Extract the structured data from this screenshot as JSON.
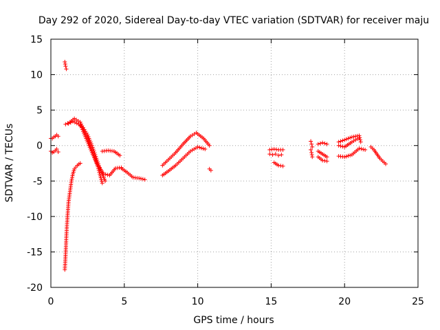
{
  "chart_data": {
    "type": "scatter",
    "title": "Day 292 of 2020, Sidereal Day-to-day VTEC variation (SDTVAR) for receiver maju",
    "xlabel": "GPS time / hours",
    "ylabel": "SDTVAR / TECUs",
    "xlim": [
      0,
      25
    ],
    "ylim": [
      -20,
      15
    ],
    "xticks": [
      0,
      5,
      10,
      15,
      20,
      25
    ],
    "yticks": [
      -20,
      -15,
      -10,
      -5,
      0,
      5,
      10,
      15
    ],
    "grid": true,
    "marker": "plus",
    "color": "#ff0000",
    "segments": [
      {
        "name": "seg-a",
        "x": [
          0.0,
          0.1,
          0.2,
          0.3,
          0.4,
          0.5
        ],
        "y": [
          1.0,
          1.0,
          1.2,
          1.3,
          1.5,
          1.3
        ]
      },
      {
        "name": "seg-b",
        "x": [
          0.0,
          0.1,
          0.2,
          0.3,
          0.4,
          0.5
        ],
        "y": [
          -0.8,
          -1.0,
          -0.9,
          -0.7,
          -0.5,
          -0.9
        ]
      },
      {
        "name": "seg-c",
        "x": [
          0.95,
          1.0,
          1.05
        ],
        "y": [
          11.8,
          11.2,
          10.8
        ]
      },
      {
        "name": "seg-d",
        "x": [
          0.95,
          1.0,
          1.05,
          1.1,
          1.15,
          1.2,
          1.3,
          1.4,
          1.5,
          1.6,
          1.8,
          2.0
        ],
        "y": [
          -17.5,
          -15.5,
          -13.0,
          -11.0,
          -9.5,
          -8.0,
          -6.5,
          -5.0,
          -4.0,
          -3.3,
          -2.8,
          -2.5
        ]
      },
      {
        "name": "seg-e",
        "x": [
          1.0,
          1.3,
          1.6,
          2.0,
          2.3,
          2.6,
          2.9,
          3.2,
          3.5
        ],
        "y": [
          3.0,
          3.3,
          3.8,
          3.3,
          2.0,
          0.5,
          -1.2,
          -3.0,
          -5.3
        ]
      },
      {
        "name": "seg-f",
        "x": [
          1.2,
          1.5,
          1.9,
          2.2,
          2.5,
          2.8,
          3.1,
          3.4,
          3.7
        ],
        "y": [
          3.1,
          3.4,
          3.0,
          2.5,
          1.5,
          0.0,
          -1.8,
          -3.6,
          -5.0
        ]
      },
      {
        "name": "seg-g",
        "x": [
          2.0,
          2.4,
          2.8,
          3.2,
          3.6,
          4.0,
          4.4,
          4.8
        ],
        "y": [
          3.0,
          1.0,
          -1.0,
          -2.8,
          -4.0,
          -4.2,
          -3.2,
          -3.1
        ]
      },
      {
        "name": "seg-h",
        "x": [
          3.5,
          3.9,
          4.3,
          4.7
        ],
        "y": [
          -0.8,
          -0.7,
          -0.8,
          -1.4
        ]
      },
      {
        "name": "seg-i",
        "x": [
          4.8,
          5.2,
          5.6,
          6.0,
          6.4
        ],
        "y": [
          -3.2,
          -3.8,
          -4.5,
          -4.6,
          -4.8
        ]
      },
      {
        "name": "seg-j",
        "x": [
          7.6,
          8.0,
          8.5,
          9.0,
          9.5,
          9.9,
          10.4,
          10.8
        ],
        "y": [
          -2.8,
          -2.0,
          -1.0,
          0.2,
          1.3,
          1.8,
          1.0,
          0.0
        ]
      },
      {
        "name": "seg-k",
        "x": [
          7.6,
          8.0,
          8.5,
          9.0,
          9.5,
          10.0,
          10.5
        ],
        "y": [
          -4.2,
          -3.6,
          -2.8,
          -1.8,
          -0.8,
          -0.2,
          -0.5
        ]
      },
      {
        "name": "seg-l",
        "x": [
          10.8,
          10.9
        ],
        "y": [
          -3.3,
          -3.5
        ]
      },
      {
        "name": "seg-m",
        "x": [
          14.9,
          15.2,
          15.5,
          15.8
        ],
        "y": [
          -0.6,
          -0.5,
          -0.6,
          -0.6
        ]
      },
      {
        "name": "seg-n",
        "x": [
          14.9,
          15.1,
          15.3,
          15.5,
          15.7
        ],
        "y": [
          -1.2,
          -1.3,
          -1.2,
          -1.4,
          -1.3
        ]
      },
      {
        "name": "seg-o",
        "x": [
          15.2,
          15.5,
          15.8
        ],
        "y": [
          -2.4,
          -2.8,
          -2.9
        ]
      },
      {
        "name": "seg-p",
        "x": [
          17.7,
          17.75,
          17.8
        ],
        "y": [
          0.6,
          0.2,
          -0.2
        ]
      },
      {
        "name": "seg-q",
        "x": [
          17.7,
          17.75,
          17.8
        ],
        "y": [
          -0.6,
          -1.0,
          -1.6
        ]
      },
      {
        "name": "seg-r",
        "x": [
          18.2,
          18.5,
          18.8
        ],
        "y": [
          0.2,
          0.4,
          0.2
        ]
      },
      {
        "name": "seg-s",
        "x": [
          18.2,
          18.5,
          18.8
        ],
        "y": [
          -0.8,
          -1.2,
          -1.6
        ]
      },
      {
        "name": "seg-t",
        "x": [
          18.2,
          18.5,
          18.8
        ],
        "y": [
          -1.6,
          -2.1,
          -2.2
        ]
      },
      {
        "name": "seg-u",
        "x": [
          19.6,
          20.0,
          20.5,
          21.0,
          21.1
        ],
        "y": [
          0.5,
          0.8,
          1.2,
          1.4,
          0.5
        ]
      },
      {
        "name": "seg-v",
        "x": [
          19.6,
          20.0,
          20.5,
          21.0
        ],
        "y": [
          0.0,
          -0.2,
          0.5,
          1.1
        ]
      },
      {
        "name": "seg-w",
        "x": [
          19.6,
          20.0,
          20.5,
          21.0,
          21.4
        ],
        "y": [
          -1.5,
          -1.6,
          -1.3,
          -0.4,
          -0.6
        ]
      },
      {
        "name": "seg-x",
        "x": [
          21.8,
          22.0,
          22.2,
          22.4,
          22.6,
          22.8
        ],
        "y": [
          -0.2,
          -0.6,
          -1.2,
          -1.8,
          -2.2,
          -2.6
        ]
      }
    ]
  }
}
